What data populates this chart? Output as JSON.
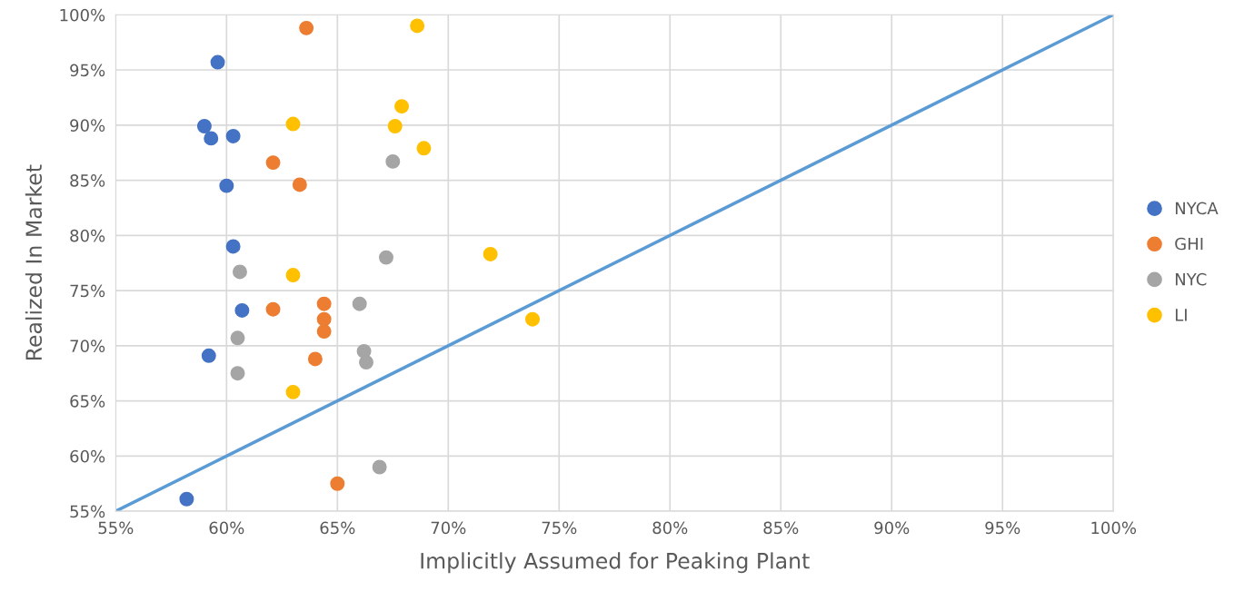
{
  "chart_data": {
    "type": "scatter",
    "xlabel": "Implicitly Assumed for Peaking Plant",
    "ylabel": "Realized In Market",
    "xlim": [
      55,
      100
    ],
    "ylim": [
      55,
      100
    ],
    "xticks": [
      {
        "value": 55,
        "label": "55%"
      },
      {
        "value": 60,
        "label": "60%"
      },
      {
        "value": 65,
        "label": "65%"
      },
      {
        "value": 70,
        "label": "70%"
      },
      {
        "value": 75,
        "label": "75%"
      },
      {
        "value": 80,
        "label": "80%"
      },
      {
        "value": 85,
        "label": "85%"
      },
      {
        "value": 90,
        "label": "90%"
      },
      {
        "value": 95,
        "label": "95%"
      },
      {
        "value": 100,
        "label": "100%"
      }
    ],
    "yticks": [
      {
        "value": 55,
        "label": "55%"
      },
      {
        "value": 60,
        "label": "60%"
      },
      {
        "value": 65,
        "label": "65%"
      },
      {
        "value": 70,
        "label": "70%"
      },
      {
        "value": 75,
        "label": "75%"
      },
      {
        "value": 80,
        "label": "80%"
      },
      {
        "value": 85,
        "label": "85%"
      },
      {
        "value": 90,
        "label": "90%"
      },
      {
        "value": 95,
        "label": "95%"
      },
      {
        "value": 100,
        "label": "100%"
      }
    ],
    "grid": true,
    "legend": "right",
    "marker": "circle",
    "series": [
      {
        "type": "line",
        "color": "#5b9bd5",
        "x": [
          55,
          100
        ],
        "values": [
          55,
          100
        ],
        "marker": "none",
        "line_style": "solid"
      },
      {
        "name": "NYCA",
        "color": "#4472c4",
        "x": [
          59.6,
          59.0,
          59.3,
          60.3,
          60.0,
          60.3,
          60.7,
          59.2,
          58.2
        ],
        "values": [
          95.7,
          89.9,
          88.8,
          89.0,
          84.5,
          79.0,
          73.2,
          69.1,
          56.1
        ]
      },
      {
        "name": "GHI",
        "color": "#ed7d31",
        "x": [
          63.6,
          62.1,
          63.3,
          62.1,
          64.4,
          64.4,
          64.4,
          64.0,
          65.0
        ],
        "values": [
          98.8,
          86.6,
          84.6,
          73.3,
          73.8,
          72.4,
          71.3,
          68.8,
          57.5
        ]
      },
      {
        "name": "NYC",
        "color": "#a5a5a5",
        "x": [
          67.5,
          67.2,
          60.6,
          66.0,
          60.5,
          66.2,
          66.3,
          60.5,
          66.9
        ],
        "values": [
          86.7,
          78.0,
          76.7,
          73.8,
          70.7,
          69.5,
          68.5,
          67.5,
          59.0
        ]
      },
      {
        "name": "LI",
        "color": "#ffc000",
        "x": [
          68.6,
          67.9,
          63.0,
          67.6,
          68.9,
          63.0,
          71.9,
          73.8,
          63.0
        ],
        "values": [
          99.0,
          91.7,
          90.1,
          89.9,
          87.9,
          76.4,
          78.3,
          72.4,
          65.8
        ]
      }
    ]
  }
}
